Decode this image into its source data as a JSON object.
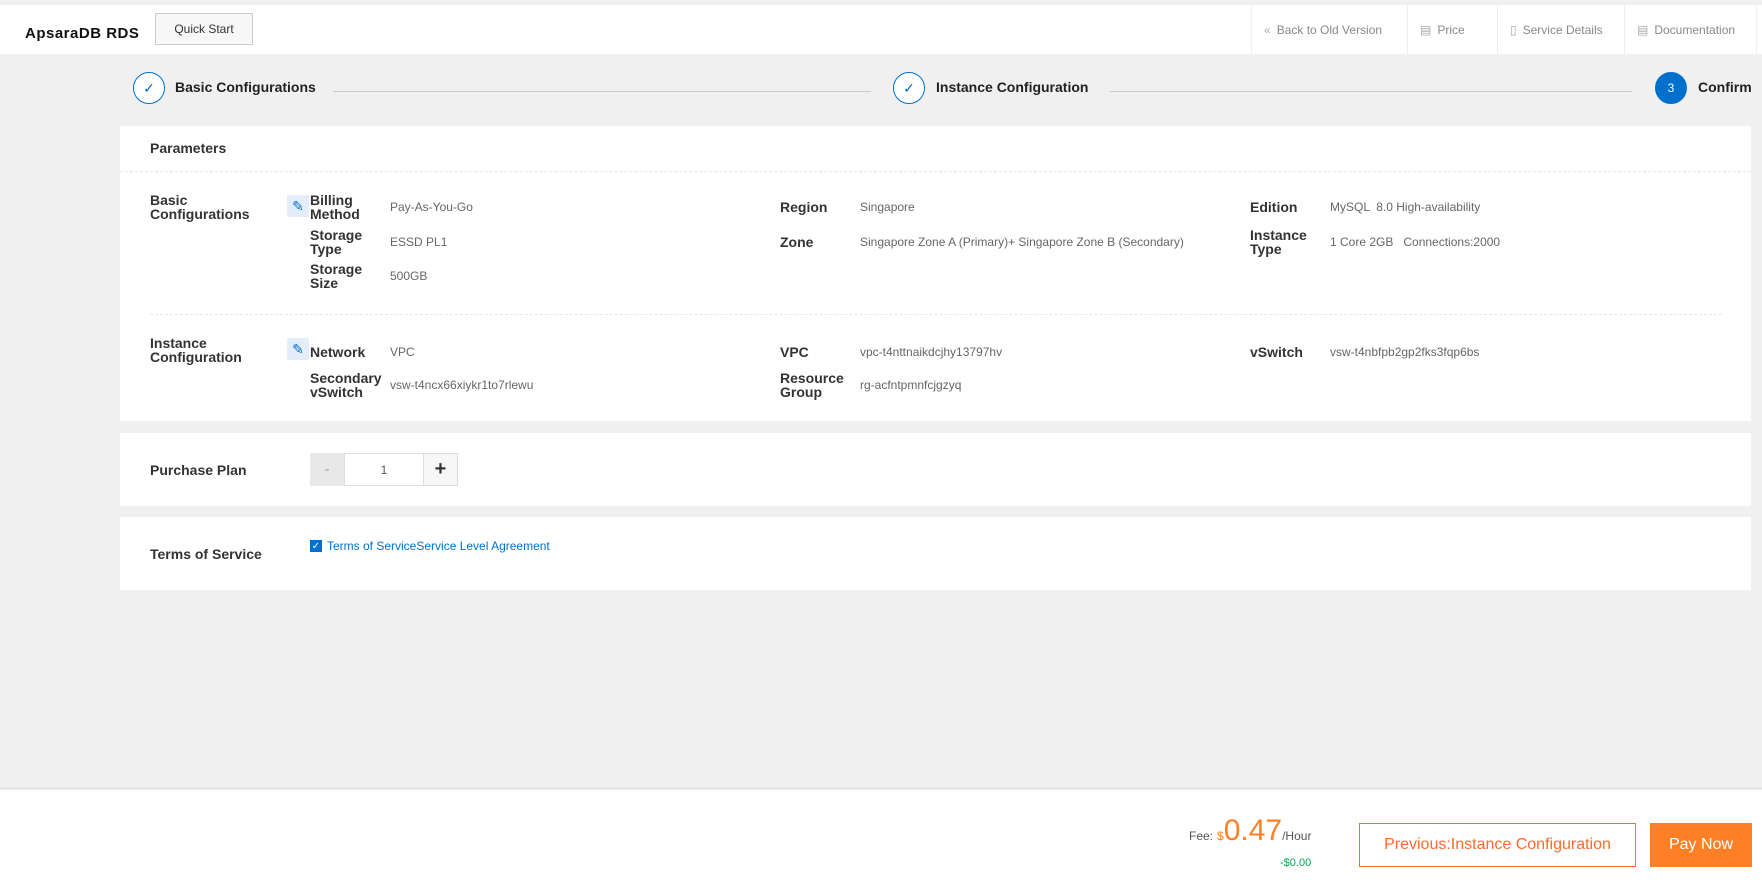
{
  "header": {
    "logo": "ApsaraDB RDS",
    "quick_start": "Quick Start",
    "nav": [
      {
        "icon": "double-chevron-left-icon",
        "label": "Back to Old Version"
      },
      {
        "icon": "price-list-icon",
        "label": "Price"
      },
      {
        "icon": "bookmark-icon",
        "label": "Service Details"
      },
      {
        "icon": "document-icon",
        "label": "Documentation"
      }
    ]
  },
  "steps": [
    {
      "label": "Basic Configurations",
      "state": "done"
    },
    {
      "label": "Instance Configuration",
      "state": "done"
    },
    {
      "number": "3",
      "label": "Confirm",
      "state": "active"
    }
  ],
  "parameters": {
    "title": "Parameters",
    "basic": {
      "title": "Basic Configurations",
      "billing_label": "Billing Method",
      "billing": "Pay-As-You-Go",
      "storage_type_label": "Storage Type",
      "storage_type": "ESSD PL1",
      "storage_size_label": "Storage Size",
      "storage_size": "500GB",
      "region_label": "Region",
      "region": "Singapore",
      "zone_label": "Zone",
      "zone": "Singapore Zone A (Primary)+ Singapore Zone B (Secondary)",
      "edition_label": "Edition",
      "edition": "MySQL  8.0 High-availability",
      "instance_type_label": "Instance Type",
      "instance_type": "1 Core 2GB   Connections:2000"
    },
    "instance": {
      "title": "Instance Configuration",
      "network_label": "Network",
      "network": "VPC",
      "sec_vswitch_label": "Secondary vSwitch",
      "sec_vswitch": "vsw-t4ncx66xiykr1to7rlewu",
      "vpc_label": "VPC",
      "vpc": "vpc-t4nttnaikdcjhy13797hv",
      "rg_label": "Resource Group",
      "rg": "rg-acfntpmnfcjgzyq",
      "vswitch_label": "vSwitch",
      "vswitch": "vsw-t4nbfpb2gp2fks3fqp6bs"
    }
  },
  "purchase": {
    "title": "Purchase Plan",
    "minus": "-",
    "quantity": "1",
    "plus": "+"
  },
  "terms": {
    "title": "Terms of Service",
    "checked": true,
    "link": "Terms of ServiceService Level Agreement"
  },
  "footer": {
    "fee_label": "Fee:",
    "currency": "$",
    "price": "0.47",
    "unit": "/Hour",
    "discount": "-$0.00",
    "prev": "Previous:Instance Configuration",
    "pay": "Pay Now"
  },
  "colors": {
    "accent": "#0070cc",
    "orange": "#ff7f27",
    "green": "#00a854"
  }
}
